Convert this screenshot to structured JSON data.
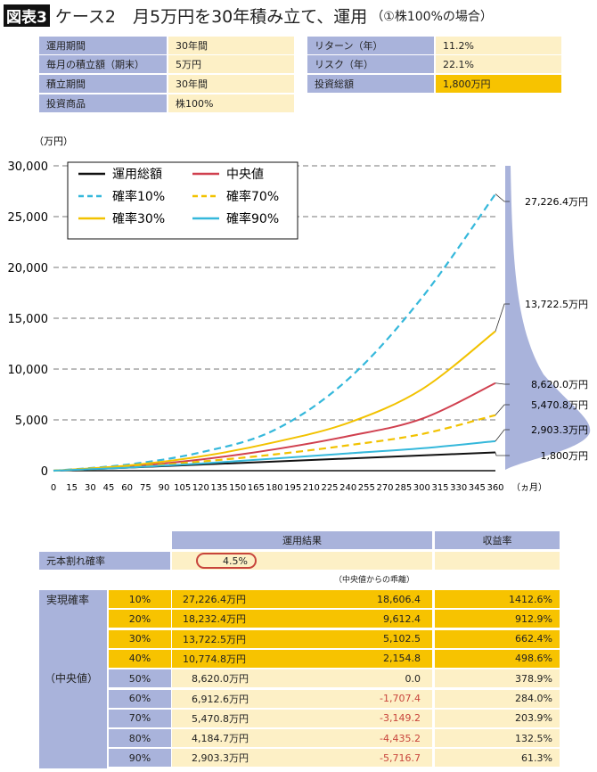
{
  "title": {
    "badge": "図表3",
    "main": "ケース2　月5万円を30年積み立て、運用",
    "sub": "（①株100%の場合）"
  },
  "summary_left": [
    {
      "label": "運用期間",
      "value": "30年間"
    },
    {
      "label": "毎月の積立額（期末）",
      "value": "5万円"
    },
    {
      "label": "積立期間",
      "value": "30年間"
    },
    {
      "label": "投資商品",
      "value": "株100%"
    }
  ],
  "summary_right": [
    {
      "label": "リターン（年）",
      "value": "11.2%"
    },
    {
      "label": "リスク（年）",
      "value": "22.1%"
    },
    {
      "label": "投資総額",
      "value": "1,800万円"
    }
  ],
  "colors": {
    "label_bg": "#a9b3db",
    "value_bg": "#fdf0c6",
    "highlight": "#f7c300",
    "negative": "#c8453c"
  },
  "chart_data": {
    "type": "line",
    "ylabel": "（万円）",
    "xlabel": "（ヵ月）",
    "ylim": [
      0,
      30000
    ],
    "xlim": [
      0,
      360
    ],
    "yticks": [
      "0",
      "5,000",
      "10,000",
      "15,000",
      "20,000",
      "25,000",
      "30,000"
    ],
    "xticks": [
      "0",
      "15",
      "30",
      "45",
      "60",
      "75",
      "90",
      "105",
      "120",
      "135",
      "150",
      "165",
      "180",
      "195",
      "210",
      "225",
      "240",
      "255",
      "270",
      "285",
      "300",
      "315",
      "330",
      "345",
      "360"
    ],
    "grid": "horizontal dashed",
    "legend_placement": "top-left",
    "x": [
      0,
      60,
      120,
      180,
      240,
      300,
      360
    ],
    "series": [
      {
        "name": "運用総額",
        "color": "#111111",
        "dash": false,
        "values": [
          0,
          300,
          600,
          900,
          1200,
          1500,
          1800
        ],
        "end_label": "1,800万円"
      },
      {
        "name": "中央値",
        "color": "#d0404f",
        "dash": false,
        "values": [
          0,
          400,
          1100,
          2100,
          3400,
          5100,
          8620.0
        ],
        "end_label": "8,620.0万円"
      },
      {
        "name": "確率10%",
        "color": "#35b8db",
        "dash": true,
        "values": [
          0,
          600,
          1800,
          4000,
          9000,
          17000,
          27226.4
        ],
        "end_label": "27,226.4万円"
      },
      {
        "name": "確率70%",
        "color": "#f2c200",
        "dash": true,
        "values": [
          0,
          350,
          900,
          1600,
          2500,
          3600,
          5470.8
        ],
        "end_label": "5,470.8万円"
      },
      {
        "name": "確率30%",
        "color": "#f2c200",
        "dash": false,
        "values": [
          0,
          500,
          1400,
          2800,
          4700,
          8000,
          13722.5
        ],
        "end_label": "13,722.5万円"
      },
      {
        "name": "確率90%",
        "color": "#35b8db",
        "dash": false,
        "values": [
          0,
          300,
          700,
          1200,
          1700,
          2200,
          2903.3
        ],
        "end_label": "2,903.3万円"
      }
    ],
    "distribution_color": "#a9b3db"
  },
  "results": {
    "header_result": "運用結果",
    "header_yield": "収益率",
    "loss_label": "元本割れ確率",
    "loss_value": "4.5%",
    "deviation_note": "（中央値からの乖離）",
    "group_label": "実現確率",
    "median_label": "（中央値）",
    "rows": [
      {
        "pct": "10%",
        "amount": "27,226.4万円",
        "dev": "18,606.4",
        "yield": "1412.6%"
      },
      {
        "pct": "20%",
        "amount": "18,232.4万円",
        "dev": "9,612.4",
        "yield": "912.9%"
      },
      {
        "pct": "30%",
        "amount": "13,722.5万円",
        "dev": "5,102.5",
        "yield": "662.4%"
      },
      {
        "pct": "40%",
        "amount": "10,774.8万円",
        "dev": "2,154.8",
        "yield": "498.6%"
      },
      {
        "pct": "50%",
        "amount": "8,620.0万円",
        "dev": "0.0",
        "yield": "378.9%"
      },
      {
        "pct": "60%",
        "amount": "6,912.6万円",
        "dev": "-1,707.4",
        "yield": "284.0%"
      },
      {
        "pct": "70%",
        "amount": "5,470.8万円",
        "dev": "-3,149.2",
        "yield": "203.9%"
      },
      {
        "pct": "80%",
        "amount": "4,184.7万円",
        "dev": "-4,435.2",
        "yield": "132.5%"
      },
      {
        "pct": "90%",
        "amount": "2,903.3万円",
        "dev": "-5,716.7",
        "yield": "61.3%"
      }
    ]
  }
}
